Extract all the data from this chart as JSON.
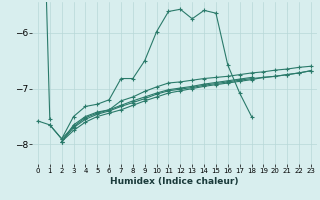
{
  "xlabel": "Humidex (Indice chaleur)",
  "background_color": "#d8eeee",
  "grid_color": "#b8d8d8",
  "line_color": "#2a7a6a",
  "xlim": [
    -0.5,
    23.5
  ],
  "ylim": [
    -8.35,
    -5.45
  ],
  "yticks": [
    -8,
    -7,
    -6
  ],
  "xticks": [
    0,
    1,
    2,
    3,
    4,
    5,
    6,
    7,
    8,
    9,
    10,
    11,
    12,
    13,
    14,
    15,
    16,
    17,
    18,
    19,
    20,
    21,
    22,
    23
  ],
  "series": [
    [
      0,
      -7.55,
      null,
      null,
      null,
      null,
      null,
      null,
      null,
      null,
      null,
      null,
      null,
      null,
      null,
      null,
      null,
      null,
      null,
      null,
      null,
      null,
      null,
      null
    ],
    [
      null,
      -7.65,
      -7.9,
      -7.5,
      -7.32,
      -7.28,
      -7.2,
      -6.82,
      -6.82,
      -6.5,
      -5.98,
      -5.62,
      -5.58,
      -5.75,
      -5.6,
      -5.65,
      -6.58,
      -7.08,
      -7.5,
      null,
      null,
      null,
      null,
      null
    ],
    [
      null,
      null,
      -7.95,
      -7.65,
      -7.5,
      -7.42,
      -7.38,
      -7.22,
      -7.15,
      -7.05,
      -6.97,
      -6.9,
      -6.88,
      -6.85,
      -6.82,
      -6.8,
      -6.78,
      -6.75,
      -6.72,
      -6.7,
      -6.67,
      -6.65,
      -6.62,
      -6.6
    ],
    [
      null,
      null,
      -7.95,
      -7.7,
      -7.55,
      -7.46,
      -7.4,
      -7.32,
      -7.25,
      -7.18,
      -7.1,
      -7.04,
      -7.01,
      -6.98,
      -6.94,
      -6.91,
      -6.88,
      -6.85,
      -6.82,
      -6.8,
      -6.78,
      -6.75,
      -6.72,
      -6.68
    ],
    [
      -7.58,
      -7.65,
      -7.9,
      -7.68,
      -7.52,
      -7.44,
      -7.38,
      -7.3,
      -7.22,
      -7.15,
      -7.08,
      -7.02,
      -6.99,
      -6.96,
      -6.92,
      -6.89,
      -6.86,
      -6.83,
      -6.8,
      null,
      null,
      null,
      null,
      null
    ],
    [
      null,
      null,
      -7.95,
      -7.75,
      -7.6,
      -7.5,
      -7.44,
      -7.38,
      -7.3,
      -7.22,
      -7.15,
      -7.08,
      -7.04,
      -7.0,
      -6.96,
      -6.93,
      -6.9,
      -6.87,
      -6.84,
      -6.8,
      -6.78,
      -6.75,
      -6.72,
      -6.68
    ]
  ]
}
